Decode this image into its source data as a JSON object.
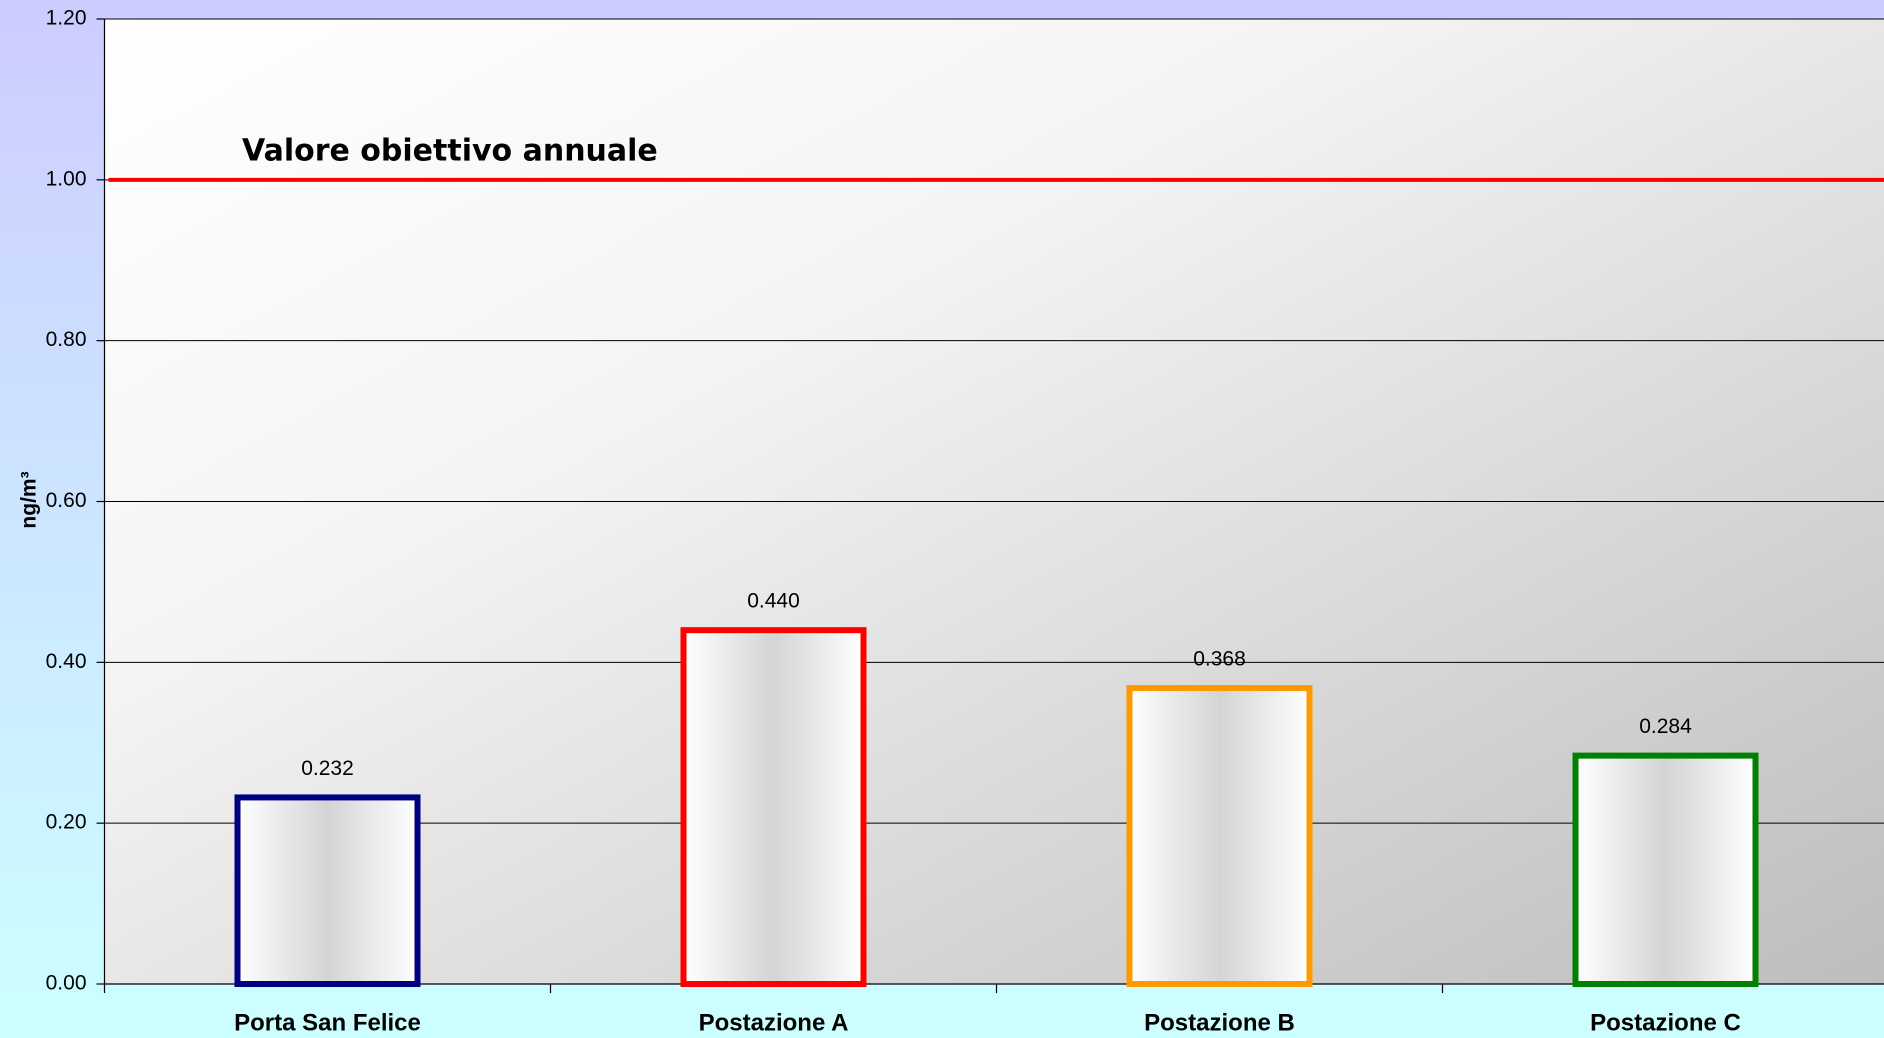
{
  "chart_data": {
    "type": "bar",
    "y_label": "ng/m³",
    "categories": [
      "Porta San Felice",
      "Postazione A",
      "Postazione B",
      "Postazione C"
    ],
    "values": [
      0.232,
      0.44,
      0.368,
      0.284
    ],
    "value_labels": [
      "0.232",
      "0.440",
      "0.368",
      "0.284"
    ],
    "colors": [
      "#000080",
      "#ff0000",
      "#ff9900",
      "#008000"
    ],
    "ylim": [
      0,
      1.2
    ],
    "yticks": [
      {
        "value": 0,
        "label": "0.00"
      },
      {
        "value": 0.2,
        "label": "0.20"
      },
      {
        "value": 0.4,
        "label": "0.40"
      },
      {
        "value": 0.6,
        "label": "0.60"
      },
      {
        "value": 0.8,
        "label": "0.80"
      },
      {
        "value": 1,
        "label": "1.00"
      },
      {
        "value": 1.2,
        "label": "1.20"
      }
    ],
    "grid": true,
    "reference_line": {
      "value": 1,
      "label": "Valore obiettivo annuale",
      "color": "#ff0000"
    }
  }
}
